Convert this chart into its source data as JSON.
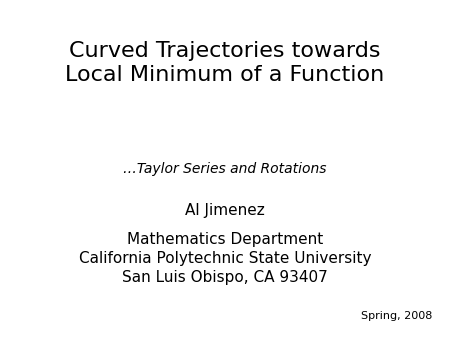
{
  "title_line1": "Curved Trajectories towards",
  "title_line2": "Local Minimum of a Function",
  "subtitle": "…Taylor Series and Rotations",
  "author": "Al Jimenez",
  "affiliation1": "Mathematics Department",
  "affiliation2": "California Polytechnic State University",
  "affiliation3": "San Luis Obispo, CA 93407",
  "footnote": "Spring, 2008",
  "bg_color": "#ffffff",
  "text_color": "#000000",
  "title_fontsize": 16,
  "subtitle_fontsize": 10,
  "author_fontsize": 11,
  "affil_fontsize": 11,
  "footnote_fontsize": 8
}
